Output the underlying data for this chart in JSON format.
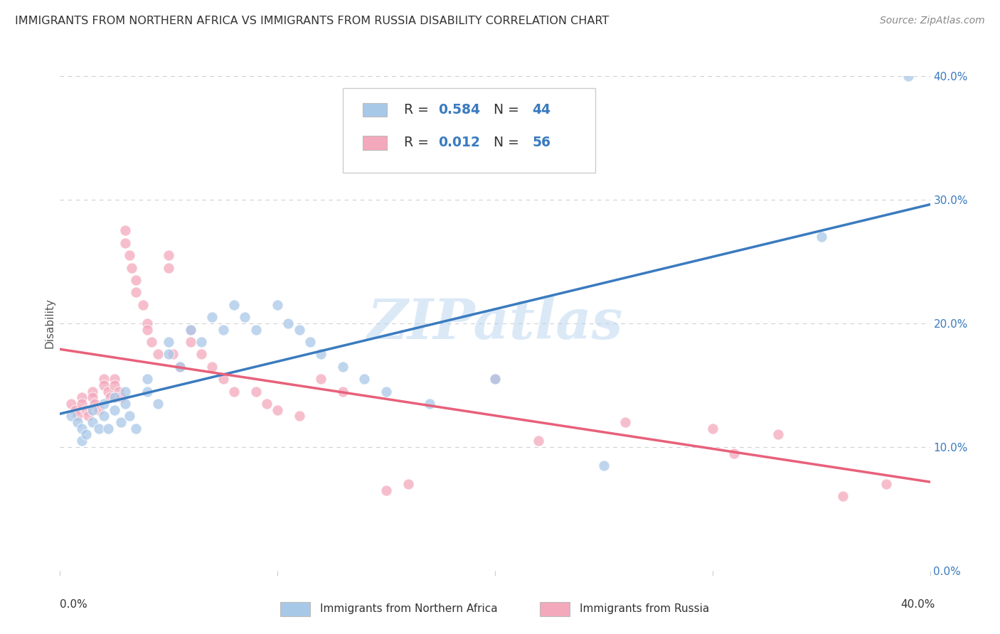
{
  "title": "IMMIGRANTS FROM NORTHERN AFRICA VS IMMIGRANTS FROM RUSSIA DISABILITY CORRELATION CHART",
  "source": "Source: ZipAtlas.com",
  "ylabel": "Disability",
  "watermark": "ZIPatlas",
  "blue_color": "#a8c8e8",
  "pink_color": "#f4a8bc",
  "blue_line_color": "#3a7bbf",
  "pink_line_color": "#e8607a",
  "xlim": [
    0.0,
    0.4
  ],
  "ylim": [
    0.0,
    0.4
  ],
  "blue_scatter_x": [
    0.005,
    0.008,
    0.01,
    0.01,
    0.012,
    0.015,
    0.015,
    0.018,
    0.02,
    0.02,
    0.022,
    0.025,
    0.025,
    0.028,
    0.03,
    0.03,
    0.032,
    0.035,
    0.04,
    0.04,
    0.045,
    0.05,
    0.05,
    0.055,
    0.06,
    0.065,
    0.07,
    0.075,
    0.08,
    0.085,
    0.09,
    0.1,
    0.105,
    0.11,
    0.115,
    0.12,
    0.13,
    0.14,
    0.15,
    0.17,
    0.2,
    0.25,
    0.35,
    0.39
  ],
  "blue_scatter_y": [
    0.125,
    0.12,
    0.115,
    0.105,
    0.11,
    0.13,
    0.12,
    0.115,
    0.135,
    0.125,
    0.115,
    0.14,
    0.13,
    0.12,
    0.145,
    0.135,
    0.125,
    0.115,
    0.155,
    0.145,
    0.135,
    0.185,
    0.175,
    0.165,
    0.195,
    0.185,
    0.205,
    0.195,
    0.215,
    0.205,
    0.195,
    0.215,
    0.2,
    0.195,
    0.185,
    0.175,
    0.165,
    0.155,
    0.145,
    0.135,
    0.155,
    0.085,
    0.27,
    0.4
  ],
  "pink_scatter_x": [
    0.005,
    0.007,
    0.008,
    0.01,
    0.01,
    0.012,
    0.013,
    0.015,
    0.015,
    0.016,
    0.018,
    0.02,
    0.02,
    0.022,
    0.023,
    0.025,
    0.025,
    0.027,
    0.028,
    0.03,
    0.03,
    0.032,
    0.033,
    0.035,
    0.035,
    0.038,
    0.04,
    0.04,
    0.042,
    0.045,
    0.05,
    0.05,
    0.052,
    0.055,
    0.06,
    0.06,
    0.065,
    0.07,
    0.075,
    0.08,
    0.09,
    0.095,
    0.1,
    0.11,
    0.12,
    0.13,
    0.15,
    0.16,
    0.2,
    0.22,
    0.26,
    0.3,
    0.31,
    0.33,
    0.36,
    0.38
  ],
  "pink_scatter_y": [
    0.135,
    0.13,
    0.125,
    0.14,
    0.135,
    0.13,
    0.125,
    0.145,
    0.14,
    0.135,
    0.13,
    0.155,
    0.15,
    0.145,
    0.14,
    0.155,
    0.15,
    0.145,
    0.14,
    0.275,
    0.265,
    0.255,
    0.245,
    0.235,
    0.225,
    0.215,
    0.2,
    0.195,
    0.185,
    0.175,
    0.255,
    0.245,
    0.175,
    0.165,
    0.195,
    0.185,
    0.175,
    0.165,
    0.155,
    0.145,
    0.145,
    0.135,
    0.13,
    0.125,
    0.155,
    0.145,
    0.065,
    0.07,
    0.155,
    0.105,
    0.12,
    0.115,
    0.095,
    0.11,
    0.06,
    0.07
  ],
  "ytick_labels": [
    "0.0%",
    "10.0%",
    "20.0%",
    "30.0%",
    "40.0%"
  ],
  "ytick_values": [
    0.0,
    0.1,
    0.2,
    0.3,
    0.4
  ],
  "background_color": "#ffffff",
  "grid_color": "#d0d0d0",
  "blue_legend_label": "Immigrants from Northern Africa",
  "pink_legend_label": "Immigrants from Russia"
}
